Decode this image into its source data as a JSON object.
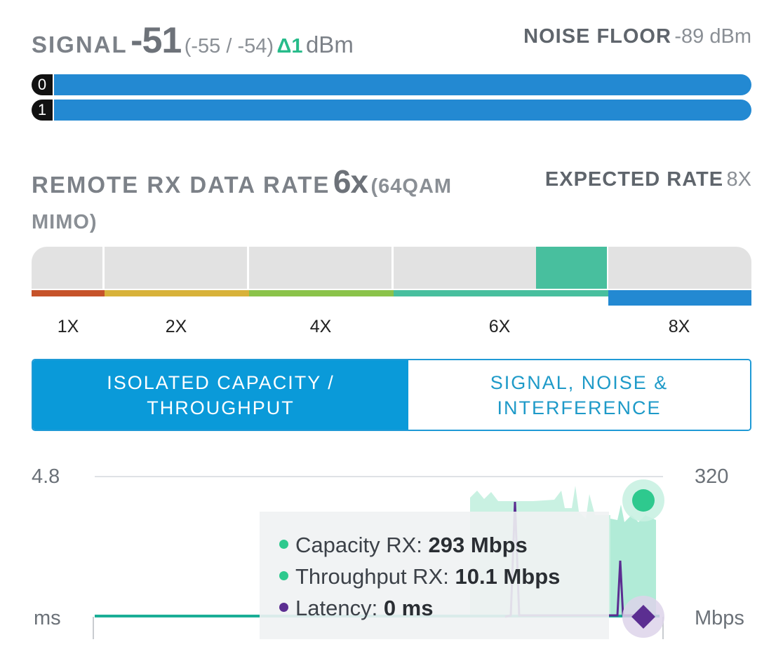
{
  "signal": {
    "label": "SIGNAL",
    "value": "-51",
    "chains": "(-55 / -54)",
    "delta": "Δ1",
    "unit": "dBm",
    "noise_floor_label": "NOISE FLOOR",
    "noise_floor_value": "-89 dBm",
    "chain_rows": [
      {
        "id": "0",
        "fill_fraction": 1.0
      },
      {
        "id": "1",
        "fill_fraction": 1.0
      }
    ]
  },
  "rate": {
    "label": "REMOTE RX DATA RATE",
    "value": "6x",
    "detail": "(64QAM MIMO)",
    "expected_label": "EXPECTED RATE",
    "expected_value": "8X",
    "scale": [
      "1X",
      "2X",
      "4X",
      "6X",
      "8X"
    ],
    "current": "6X",
    "expected": "8X"
  },
  "tabs": {
    "active": "ISOLATED CAPACITY / THROUGHPUT",
    "inactive": "SIGNAL, NOISE & INTERFERENCE"
  },
  "chart_data": {
    "type": "area",
    "left_axis": {
      "max_label": "4.8",
      "unit_label": "ms",
      "range": [
        0,
        4.8
      ]
    },
    "right_axis": {
      "max_label": "320",
      "unit_label": "Mbps",
      "range": [
        0,
        320
      ]
    },
    "series": [
      {
        "name": "Capacity RX",
        "color": "#2ec98e",
        "latest": "293 Mbps"
      },
      {
        "name": "Throughput RX",
        "color": "#2ec98e",
        "latest": "10.1 Mbps"
      },
      {
        "name": "Latency",
        "color": "#5b2e91",
        "latest": "0 ms"
      }
    ]
  },
  "tooltip": {
    "rows": [
      {
        "label": "Capacity RX:",
        "value": "293 Mbps",
        "color": "#2ec98e"
      },
      {
        "label": "Throughput RX:",
        "value": "10.1 Mbps",
        "color": "#2ec98e"
      },
      {
        "label": "Latency:",
        "value": "0 ms",
        "color": "#5b2e91"
      }
    ]
  },
  "colors": {
    "accent": "#0a9ad9",
    "chain_bar": "#2389d2",
    "active_rate": "#48bf9e",
    "expected_rate": "#2389d2"
  }
}
